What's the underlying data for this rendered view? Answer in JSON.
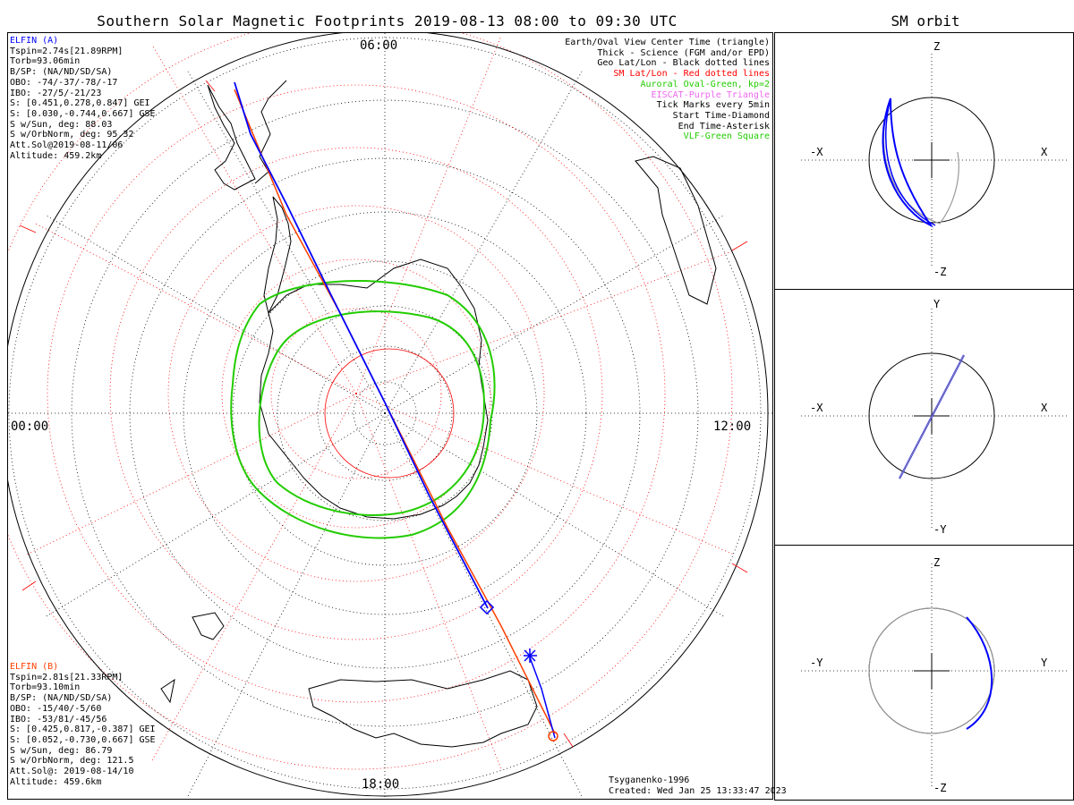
{
  "title": "Southern Solar Magnetic Footprints 2019-08-13 08:00 to 09:30 UTC",
  "orbit_title": "SM orbit",
  "time_labels": {
    "top": "06:00",
    "left": "00:00",
    "right": "12:00",
    "bottom": "18:00"
  },
  "elfin_a": {
    "name": "ELFIN (A)",
    "lines": [
      "Tspin=2.74s[21.89RPM]",
      "Torb=93.06min",
      "B/SP: (NA/ND/SD/SA)",
      "OBO: -74/-37/-78/-17",
      "IBO: -27/5/-21/23",
      "S: [0.451,0.278,0.847] GEI",
      "S: [0.030,-0.744,0.667] GSE",
      "S w/Sun, deg: 88.03",
      "S w/OrbNorm, deg: 95.32",
      "Att.Sol@2019-08-11/06",
      "Altitude: 459.2km"
    ],
    "color": "#0000ff"
  },
  "elfin_b": {
    "name": "ELFIN (B)",
    "lines": [
      "Tspin=2.81s[21.33RPM]",
      "Torb=93.10min",
      "B/SP: (NA/ND/SD/SA)",
      "OBO: -15/40/-5/60",
      "IBO: -53/81/-45/56",
      "S: [0.425,0.817,-0.387] GEI",
      "S: [0.052,-0.730,0.667] GSE",
      "S w/Sun, deg: 86.79",
      "S w/OrbNorm, deg: 121.5",
      "Att.Sol@: 2019-08-14/10",
      "Altitude: 459.6km"
    ],
    "color": "#ff4000"
  },
  "legend": [
    {
      "text": "Earth/Oval View Center Time (triangle)",
      "color": "#000000"
    },
    {
      "text": "Thick - Science (FGM and/or EPD)",
      "color": "#000000"
    },
    {
      "text": "Geo Lat/Lon - Black dotted lines",
      "color": "#000000"
    },
    {
      "text": "SM Lat/Lon - Red dotted lines",
      "color": "#ff0000"
    },
    {
      "text": "Auroral Oval-Green, kp=2",
      "color": "#22cc00"
    },
    {
      "text": "EISCAT-Purple Triangle",
      "color": "#ee66ee"
    },
    {
      "text": "Tick Marks every 5min",
      "color": "#000000"
    },
    {
      "text": "Start Time-Diamond",
      "color": "#000000"
    },
    {
      "text": "End Time-Asterisk",
      "color": "#000000"
    },
    {
      "text": "VLF-Green Square",
      "color": "#22cc00"
    }
  ],
  "footer": {
    "model": "Tsyganenko-1996",
    "created": "Created: Wed Jan 25 13:33:47 2023"
  },
  "orbit_panels": [
    {
      "top": "Z",
      "bottom": "-Z",
      "left": "-X",
      "right": "X"
    },
    {
      "top": "Y",
      "bottom": "-Y",
      "left": "-X",
      "right": "X"
    },
    {
      "top": "Z",
      "bottom": "-Z",
      "left": "-Y",
      "right": "Y"
    }
  ],
  "colors": {
    "elfin_a": "#0000ff",
    "elfin_b": "#ff4000",
    "sm_grid": "#ff0000",
    "oval": "#22cc00",
    "geo_grid": "#000000"
  }
}
